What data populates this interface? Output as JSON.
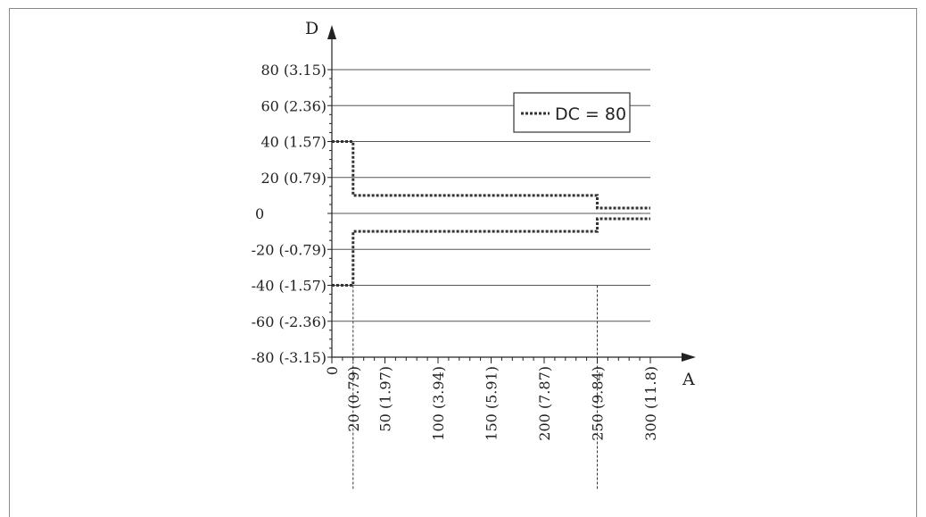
{
  "chart_data": {
    "type": "line",
    "xlabel": "A",
    "ylabel": "D",
    "xlim": [
      0,
      300
    ],
    "ylim": [
      -80,
      80
    ],
    "x_ticks": [
      {
        "value": 0,
        "label": "0"
      },
      {
        "value": 20,
        "label": "20 (0.79)"
      },
      {
        "value": 50,
        "label": "50 (1.97)"
      },
      {
        "value": 100,
        "label": "100 (3.94)"
      },
      {
        "value": 150,
        "label": "150 (5.91)"
      },
      {
        "value": 200,
        "label": "200 (7.87)"
      },
      {
        "value": 250,
        "label": "250 (9.84)"
      },
      {
        "value": 300,
        "label": "300 (11.8)"
      }
    ],
    "y_ticks": [
      {
        "value": 80,
        "label": "80 (3.15)"
      },
      {
        "value": 60,
        "label": "60 (2.36)"
      },
      {
        "value": 40,
        "label": "40 (1.57)"
      },
      {
        "value": 20,
        "label": "20 (0.79)"
      },
      {
        "value": 0,
        "label": "0"
      },
      {
        "value": -20,
        "label": "-20 (-0.79)"
      },
      {
        "value": -40,
        "label": "-40 (-1.57)"
      },
      {
        "value": -60,
        "label": "-60 (-2.36)"
      },
      {
        "value": -80,
        "label": "-80 (-3.15)"
      }
    ],
    "grid": true,
    "legend": {
      "position": "top-right",
      "label": "DC = 80"
    },
    "series": [
      {
        "name": "DC = 80",
        "style": "dotted",
        "upper": [
          [
            0,
            40
          ],
          [
            20,
            40
          ],
          [
            20,
            10
          ],
          [
            250,
            10
          ],
          [
            250,
            3
          ],
          [
            300,
            3
          ]
        ],
        "lower": [
          [
            0,
            -40
          ],
          [
            20,
            -40
          ],
          [
            20,
            -10
          ],
          [
            250,
            -10
          ],
          [
            250,
            -3
          ],
          [
            300,
            -3
          ]
        ]
      }
    ],
    "reference_lines": [
      20,
      250
    ]
  }
}
